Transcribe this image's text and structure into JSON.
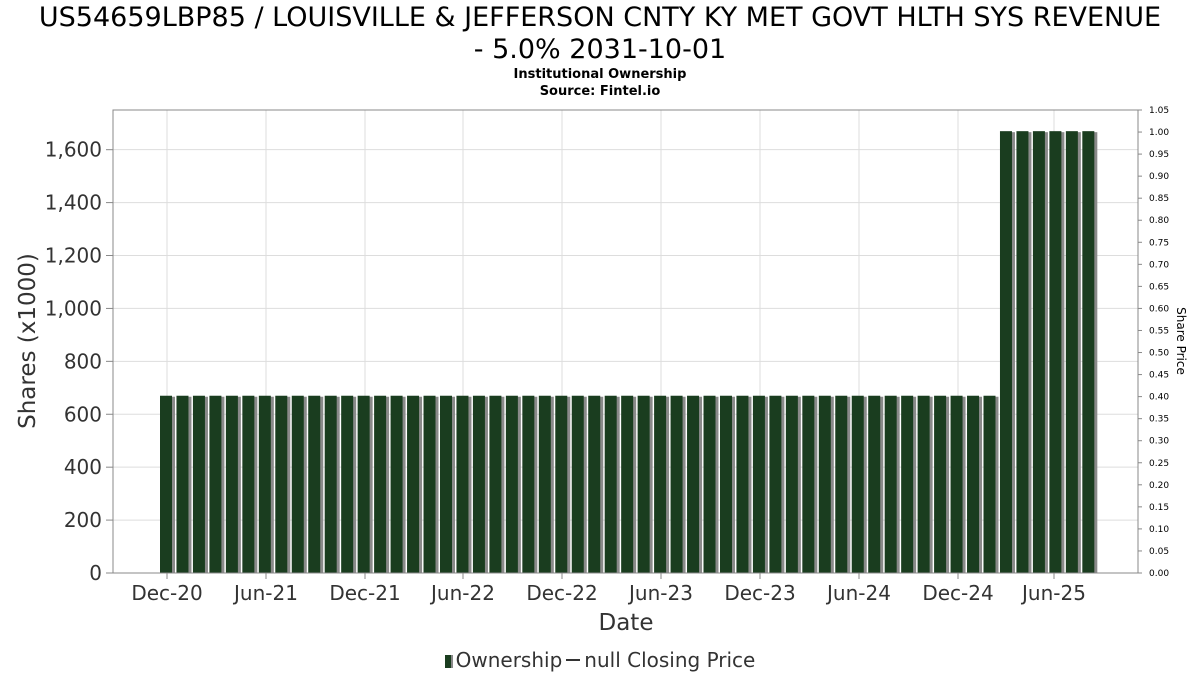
{
  "title_line1": "US54659LBP85 / LOUISVILLE & JEFFERSON CNTY KY MET GOVT HLTH SYS REVENUE",
  "title_line2": "- 5.0% 2031-10-01",
  "subtitle1": "Institutional Ownership",
  "subtitle2": "Source: Fintel.io",
  "legend": {
    "ownership": "Ownership",
    "price": "null Closing Price"
  },
  "colors": {
    "bar": "#1a3d1f",
    "bar_shadow": "#8a8a8a",
    "grid": "#dddddd",
    "axis": "#888888"
  },
  "chart_data": {
    "type": "bar",
    "xlabel": "Date",
    "ylabel": "Shares (x1000)",
    "y2label": "Share Price",
    "ylim": [
      0,
      1750
    ],
    "y2lim": [
      0,
      1.05
    ],
    "yticks": [
      0,
      200,
      400,
      600,
      800,
      1000,
      1200,
      1400,
      1600
    ],
    "yticklabels": [
      "0",
      "200",
      "400",
      "600",
      "800",
      "1,000",
      "1,200",
      "1,400",
      "1,600"
    ],
    "y2ticklabels": [
      "0.00",
      "0.05",
      "0.10",
      "0.15",
      "0.20",
      "0.25",
      "0.30",
      "0.35",
      "0.40",
      "0.45",
      "0.50",
      "0.55",
      "0.60",
      "0.65",
      "0.70",
      "0.75",
      "0.80",
      "0.85",
      "0.90",
      "0.95",
      "1.00",
      "1.05"
    ],
    "xticklabels": [
      "Dec-20",
      "Jun-21",
      "Dec-21",
      "Jun-22",
      "Dec-22",
      "Jun-23",
      "Dec-23",
      "Jun-24",
      "Dec-24",
      "Jun-25"
    ],
    "grid": true,
    "legend_position": "bottom",
    "series": [
      {
        "name": "Ownership",
        "values": [
          670,
          670,
          670,
          670,
          670,
          670,
          670,
          670,
          670,
          670,
          670,
          670,
          670,
          670,
          670,
          670,
          670,
          670,
          670,
          670,
          670,
          670,
          670,
          670,
          670,
          670,
          670,
          670,
          670,
          670,
          670,
          670,
          670,
          670,
          670,
          670,
          670,
          670,
          670,
          670,
          670,
          670,
          670,
          670,
          670,
          670,
          670,
          670,
          670,
          670,
          670,
          1670,
          1670,
          1670,
          1670,
          1670,
          1670
        ]
      }
    ]
  }
}
